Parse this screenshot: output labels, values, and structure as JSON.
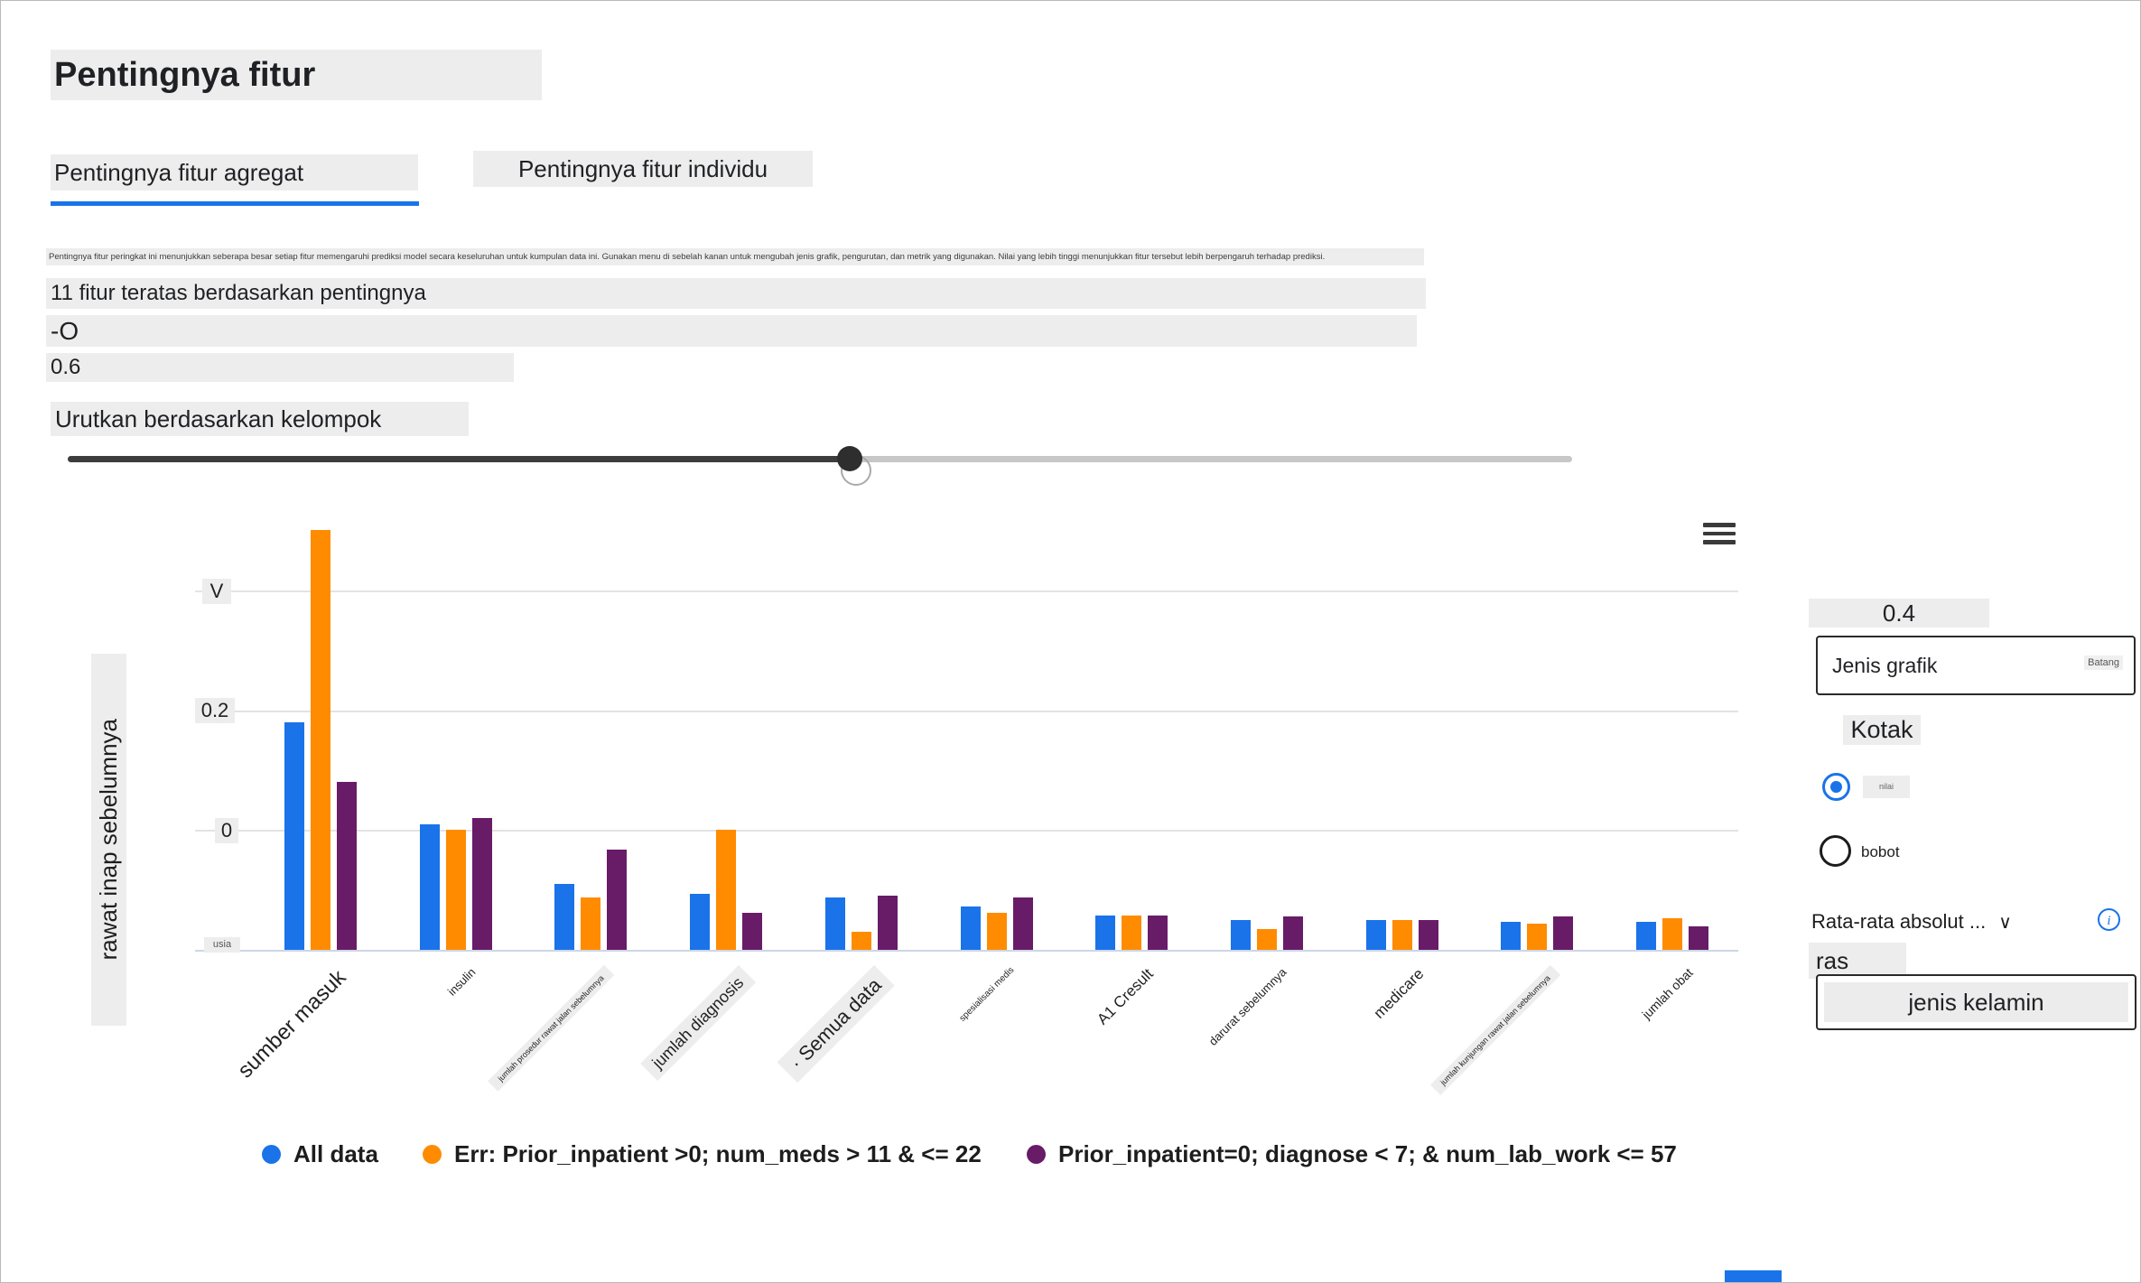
{
  "header": {
    "title": "Pentingnya fitur",
    "tabs": [
      {
        "label": "Pentingnya fitur agregat",
        "active": true
      },
      {
        "label": "Pentingnya fitur individu",
        "active": false
      }
    ]
  },
  "info": {
    "description": "Pentingnya fitur peringkat ini menunjukkan seberapa besar setiap fitur memengaruhi prediksi model secara keseluruhan untuk kumpulan data ini. Gunakan menu di sebelah kanan untuk mengubah jenis grafik, pengurutan, dan metrik yang digunakan. Nilai yang lebih tinggi menunjukkan fitur tersebut lebih berpengaruh terhadap prediksi.",
    "top_features": "11 fitur teratas berdasarkan pentingnya",
    "range_prefix": "-O",
    "range_value": "0.6",
    "sort_label": "Urutkan berdasarkan kelompok"
  },
  "slider": {
    "value_percent": 52
  },
  "chart_data": {
    "type": "bar",
    "title": "11 fitur teratas berdasarkan pentingnya",
    "xlabel": "",
    "ylabel": "rawat inap sebelumnya",
    "y_ticks": [
      "V",
      "0.2",
      "0"
    ],
    "y_tick_extra": "usia",
    "ylim": [
      0,
      0.75
    ],
    "grid": true,
    "legend_position": "bottom",
    "categories": [
      "sumber masuk",
      "insulin",
      "jumlah prosedur rawat jalan sebelumnya",
      "jumlah diagnosis",
      "· Semua data",
      "spesialisasi medis",
      "A1 Cresult",
      "darurat sebelumnya",
      "medicare",
      "jumlah kunjungan rawat jalan sebelumnya",
      "jumlah obat"
    ],
    "series": [
      {
        "name": "All data",
        "color": "#1a73e8",
        "values": [
          0.38,
          0.21,
          0.11,
          0.094,
          0.087,
          0.073,
          0.057,
          0.05,
          0.05,
          0.046,
          0.046
        ]
      },
      {
        "name": "Err: Prior_inpatient >0; num_meds > 11 & <= 22",
        "color": "#ff8c00",
        "values": [
          0.7,
          0.2,
          0.087,
          0.2,
          0.03,
          0.062,
          0.057,
          0.034,
          0.05,
          0.043,
          0.053
        ]
      },
      {
        "name": "Prior_inpatient=0; diagnose < 7; & num_lab_work <= 57",
        "color": "#681b67",
        "values": [
          0.28,
          0.22,
          0.167,
          0.062,
          0.091,
          0.087,
          0.057,
          0.055,
          0.05,
          0.055,
          0.039
        ]
      }
    ]
  },
  "side_panel": {
    "value_04": "0.4",
    "chart_type_label": "Jenis grafik",
    "chart_type_value": "Batang",
    "chart_type_option": "Kotak",
    "radio_options": [
      {
        "label": "nilai",
        "selected": true
      },
      {
        "label": "bobot",
        "selected": false
      }
    ],
    "mean_abs_label": "Rata-rata absolut ...",
    "chevron": "∨",
    "info_icon": "i",
    "ras_label": "ras",
    "gender_label": "jenis kelamin"
  }
}
